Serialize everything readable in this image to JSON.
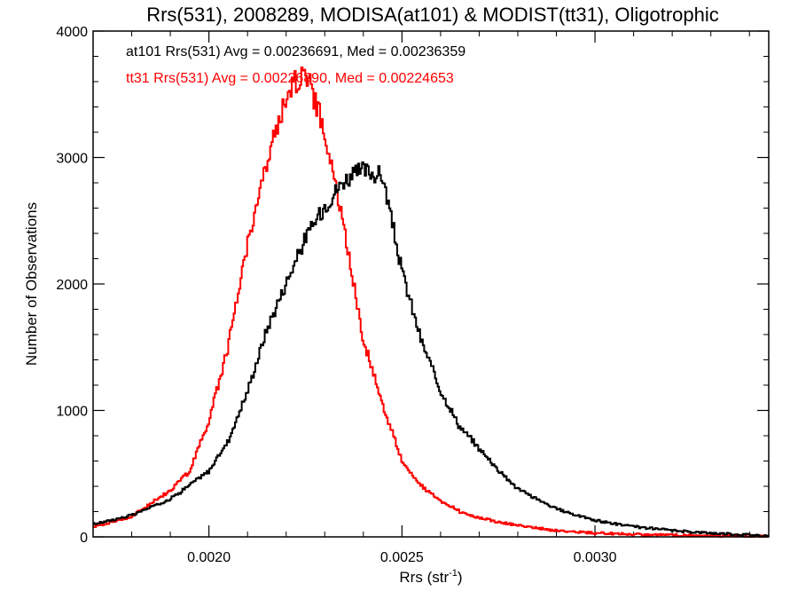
{
  "chart_data": {
    "type": "line",
    "title": "Rrs(531), 2008289, MODISA(at101) & MODIST(tt31), Oligotrophic",
    "xlabel_main": "Rrs (str",
    "xlabel_sup": "-1",
    "xlabel_end": ")",
    "ylabel": "Number of Observations",
    "xlim": [
      0.0017,
      0.00345
    ],
    "ylim": [
      0,
      4000
    ],
    "x_ticks": [
      0.002,
      0.0025,
      0.003
    ],
    "x_tick_labels": [
      "0.0020",
      "0.0025",
      "0.0030"
    ],
    "y_ticks": [
      0,
      1000,
      2000,
      3000,
      4000
    ],
    "y_tick_labels": [
      "0",
      "1000",
      "2000",
      "3000",
      "4000"
    ],
    "annotations": [
      {
        "text": "at101 Rrs(531) Avg = 0.00236691, Med = 0.00236359",
        "color": "#000000"
      },
      {
        "text": "tt31 Rrs(531) Avg = 0.00226890, Med = 0.00224653",
        "color": "#ff0000"
      }
    ],
    "series": [
      {
        "color": "#000000",
        "x": [
          0.0017,
          0.0018,
          0.0019,
          0.002,
          0.00205,
          0.0021,
          0.00215,
          0.0022,
          0.00225,
          0.0023,
          0.00235,
          0.0024,
          0.00245,
          0.0025,
          0.00255,
          0.0026,
          0.00265,
          0.0027,
          0.00275,
          0.0028,
          0.0029,
          0.003,
          0.0031,
          0.0032,
          0.0033,
          0.00345
        ],
        "y": [
          100,
          170,
          300,
          520,
          760,
          1150,
          1640,
          2010,
          2360,
          2620,
          2820,
          2900,
          2850,
          2100,
          1550,
          1160,
          870,
          700,
          530,
          380,
          220,
          130,
          80,
          50,
          30,
          10
        ]
      },
      {
        "color": "#ff0000",
        "x": [
          0.0017,
          0.0018,
          0.0019,
          0.00195,
          0.002,
          0.00205,
          0.0021,
          0.00215,
          0.0022,
          0.00225,
          0.0023,
          0.00235,
          0.0024,
          0.00245,
          0.0025,
          0.00255,
          0.0026,
          0.00265,
          0.0027,
          0.0028,
          0.0029,
          0.003,
          0.0031,
          0.0032,
          0.0033,
          0.00345
        ],
        "y": [
          80,
          160,
          370,
          520,
          920,
          1510,
          2330,
          2950,
          3490,
          3700,
          3200,
          2440,
          1560,
          1050,
          600,
          400,
          280,
          200,
          150,
          90,
          50,
          30,
          20,
          15,
          10,
          5
        ]
      }
    ]
  }
}
